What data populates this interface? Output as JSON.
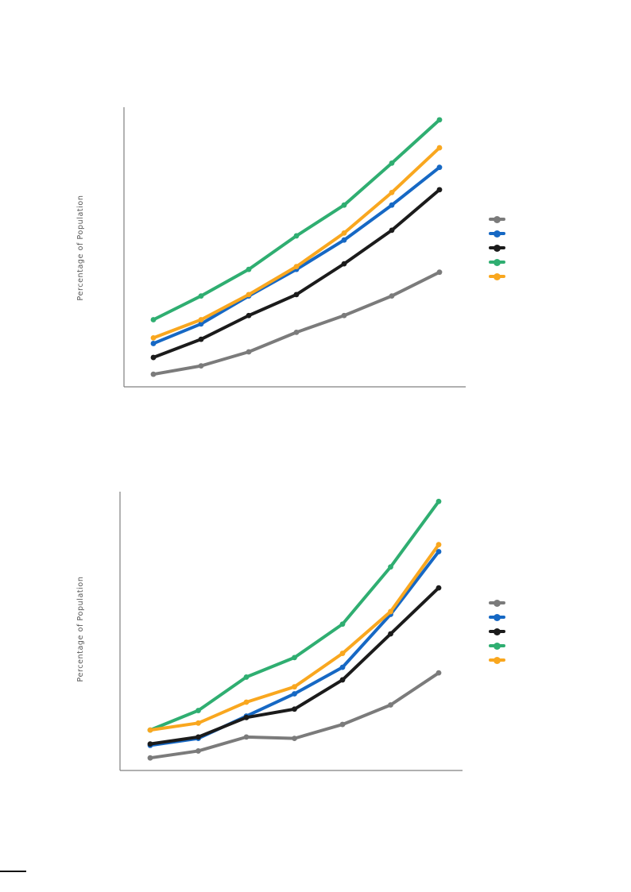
{
  "page": {
    "title": "",
    "axis_color": "#808080"
  },
  "chart_data": [
    {
      "type": "line",
      "position": "top",
      "title": "",
      "xlabel": "",
      "ylabel": "Percentage of Population",
      "x": [
        1,
        2,
        3,
        4,
        5,
        6,
        7
      ],
      "x_tick_labels": [],
      "y_tick_labels": [],
      "ylim": [
        0,
        100
      ],
      "grid": false,
      "legend_position": "right",
      "legend_labels_visible": false,
      "series": [
        {
          "name": "gray",
          "label": "",
          "color": "#7b7b7b",
          "values": [
            4.5,
            7.5,
            12.5,
            19.5,
            25.5,
            32.5,
            41
          ]
        },
        {
          "name": "blue",
          "label": "",
          "color": "#1668c4",
          "values": [
            15.5,
            22.5,
            32.5,
            42,
            52.5,
            65,
            78.5
          ]
        },
        {
          "name": "black",
          "label": "",
          "color": "#1b1b1b",
          "values": [
            10.5,
            17,
            25.5,
            33,
            44,
            56,
            70.5
          ]
        },
        {
          "name": "green",
          "label": "",
          "color": "#2fae71",
          "values": [
            24,
            32.5,
            42,
            54,
            65,
            80,
            95.5
          ]
        },
        {
          "name": "orange",
          "label": "",
          "color": "#f9a71f",
          "values": [
            17.5,
            24,
            33,
            43,
            55,
            69.5,
            85.5
          ]
        }
      ]
    },
    {
      "type": "line",
      "position": "bottom",
      "title": "",
      "xlabel": "",
      "ylabel": "Percentage of Population",
      "x": [
        1,
        2,
        3,
        4,
        5,
        6,
        7
      ],
      "x_tick_labels": [],
      "y_tick_labels": [],
      "ylim": [
        0,
        100
      ],
      "grid": false,
      "legend_position": "right",
      "legend_labels_visible": false,
      "series": [
        {
          "name": "gray",
          "label": "",
          "color": "#7b7b7b",
          "values": [
            4.5,
            7,
            12,
            11.5,
            16.5,
            23.5,
            35
          ]
        },
        {
          "name": "blue",
          "label": "",
          "color": "#1668c4",
          "values": [
            9,
            11.5,
            19.5,
            27.5,
            37,
            56,
            78.5
          ]
        },
        {
          "name": "black",
          "label": "",
          "color": "#1b1b1b",
          "values": [
            9.5,
            12,
            19,
            22,
            32.5,
            49,
            65.5
          ]
        },
        {
          "name": "green",
          "label": "",
          "color": "#2fae71",
          "values": [
            14.5,
            21.5,
            33.5,
            40.5,
            52.5,
            73,
            96.5
          ]
        },
        {
          "name": "orange",
          "label": "",
          "color": "#f9a71f",
          "values": [
            14.5,
            17,
            24.5,
            30,
            42,
            57,
            81
          ]
        }
      ]
    }
  ]
}
